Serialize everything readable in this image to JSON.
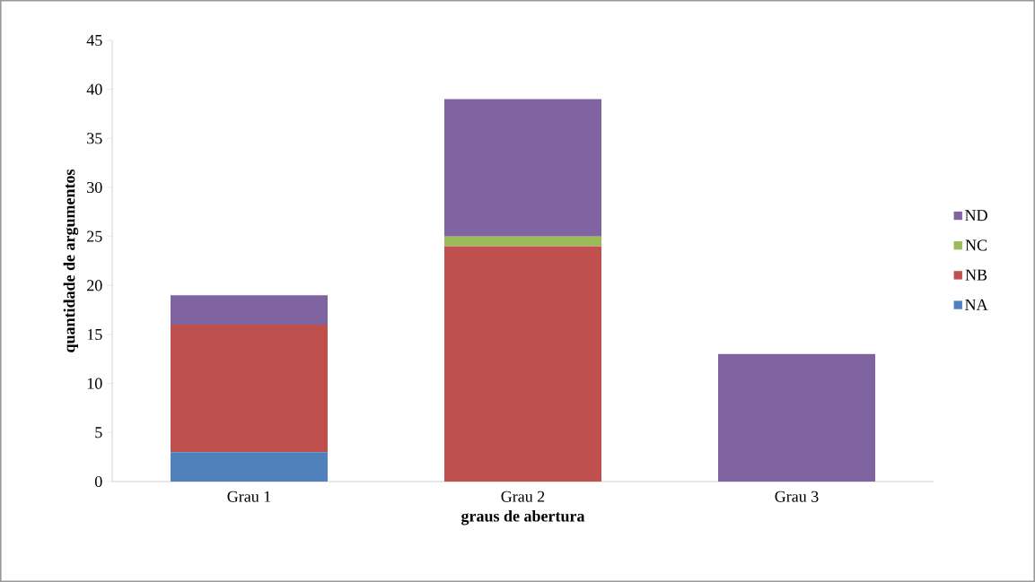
{
  "chart_data": {
    "type": "bar",
    "stacked": true,
    "xlabel": "graus de abertura",
    "ylabel": "quantidade de argumentos",
    "categories": [
      "Grau 1",
      "Grau 2",
      "Grau 3"
    ],
    "series": [
      {
        "name": "NA",
        "color": "#4f81bd",
        "values": [
          3,
          0,
          0
        ]
      },
      {
        "name": "NB",
        "color": "#c0504d",
        "values": [
          13,
          24,
          0
        ]
      },
      {
        "name": "NC",
        "color": "#9bbb59",
        "values": [
          0,
          1,
          0
        ]
      },
      {
        "name": "ND",
        "color": "#8064a2",
        "values": [
          3,
          14,
          13
        ]
      }
    ],
    "ylim": [
      0,
      45
    ],
    "yticks": [
      0,
      5,
      10,
      15,
      20,
      25,
      30,
      35,
      40,
      45
    ],
    "grid": false,
    "legend": "right"
  }
}
